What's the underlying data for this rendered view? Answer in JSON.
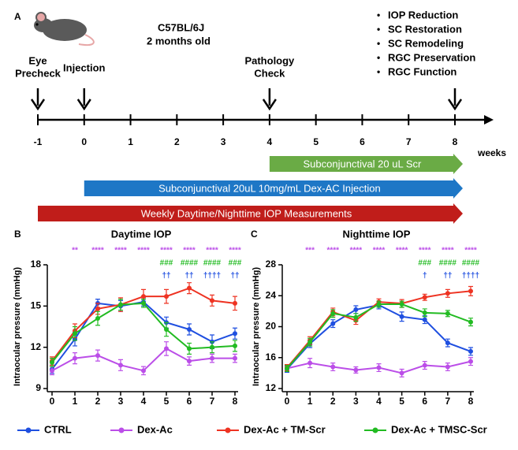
{
  "timeline": {
    "panel_label": "A",
    "strain": "C57BL/6J",
    "age": "2 months old",
    "ticks": [
      -1,
      0,
      1,
      2,
      3,
      4,
      5,
      6,
      7,
      8
    ],
    "unit": "weeks",
    "events": [
      {
        "at": -1,
        "lines": [
          "Eye",
          "Precheck"
        ]
      },
      {
        "at": 0,
        "lines": [
          "Injection"
        ]
      },
      {
        "at": 4,
        "lines": [
          "Pathology",
          "Check"
        ]
      },
      {
        "at": 8,
        "lines": []
      }
    ],
    "outcomes": [
      "IOP Reduction",
      "SC Restoration",
      "SC Remodeling",
      "RGC Preservation",
      "RGC Function"
    ],
    "bars": [
      {
        "label": "Subconjunctival 20 uL Scr",
        "start": 4,
        "end": 8,
        "color": "#6aab45"
      },
      {
        "label": "Subconjunctival 20uL 10mg/mL  Dex-AC Injection",
        "start": 0,
        "end": 8,
        "color": "#1e77c6"
      },
      {
        "label": "Weekly Daytime/Nighttime IOP Measurements",
        "start": -1,
        "end": 8,
        "color": "#c01d1a"
      }
    ]
  },
  "chart_data": [
    {
      "type": "line",
      "panel_label": "B",
      "title": "Daytime IOP",
      "y_label": "Intraocular pressure (mmHg)",
      "x": [
        0,
        1,
        2,
        3,
        4,
        5,
        6,
        7,
        8
      ],
      "xlim": [
        0,
        8
      ],
      "xticks": [
        0,
        1,
        2,
        3,
        4,
        5,
        6,
        7,
        8
      ],
      "ylim": [
        9,
        18
      ],
      "yticks": [
        9,
        12,
        15,
        18
      ],
      "series": [
        {
          "name": "CTRL",
          "color": "#1f4fe0",
          "values": [
            10.4,
            12.6,
            15.2,
            15.0,
            15.3,
            13.8,
            13.3,
            12.4,
            13.0
          ],
          "errors": [
            0.3,
            0.5,
            0.3,
            0.4,
            0.3,
            0.4,
            0.4,
            0.5,
            0.4
          ]
        },
        {
          "name": "Dex-Ac",
          "color": "#bb4ee8",
          "values": [
            10.3,
            11.2,
            11.4,
            10.7,
            10.3,
            11.9,
            11.0,
            11.2,
            11.2
          ],
          "errors": [
            0.3,
            0.4,
            0.4,
            0.4,
            0.3,
            0.5,
            0.3,
            0.3,
            0.3
          ]
        },
        {
          "name": "Dex-Ac + TM-Scr",
          "color": "#ee3322",
          "values": [
            11.0,
            13.2,
            14.8,
            15.1,
            15.7,
            15.7,
            16.3,
            15.4,
            15.2
          ],
          "errors": [
            0.3,
            0.5,
            0.4,
            0.5,
            0.5,
            0.5,
            0.4,
            0.4,
            0.5
          ]
        },
        {
          "name": "Dex-Ac + TMSC-Scr",
          "color": "#22bb22",
          "values": [
            10.9,
            13.0,
            14.1,
            15.1,
            15.2,
            13.3,
            11.9,
            12.0,
            12.1
          ],
          "errors": [
            0.3,
            0.5,
            0.5,
            0.4,
            0.3,
            0.5,
            0.4,
            0.4,
            0.4
          ]
        }
      ],
      "significance": [
        {
          "color": "#bb4ee8",
          "marks": [
            {
              "x": 1,
              "text": "**"
            },
            {
              "x": 2,
              "text": "****"
            },
            {
              "x": 3,
              "text": "****"
            },
            {
              "x": 4,
              "text": "****"
            },
            {
              "x": 5,
              "text": "****"
            },
            {
              "x": 6,
              "text": "****"
            },
            {
              "x": 7,
              "text": "****"
            },
            {
              "x": 8,
              "text": "****"
            }
          ]
        },
        {
          "color": "#22bb22",
          "marks": [
            {
              "x": 5,
              "text": "###"
            },
            {
              "x": 6,
              "text": "####"
            },
            {
              "x": 7,
              "text": "####"
            },
            {
              "x": 8,
              "text": "###"
            }
          ]
        },
        {
          "color": "#1f4fe0",
          "marks": [
            {
              "x": 5,
              "text": "††"
            },
            {
              "x": 6,
              "text": "††"
            },
            {
              "x": 7,
              "text": "††††"
            },
            {
              "x": 8,
              "text": "††"
            }
          ]
        }
      ]
    },
    {
      "type": "line",
      "panel_label": "C",
      "title": "Nighttime IOP",
      "y_label": "Intraocular pressure (mmHg)",
      "x": [
        0,
        1,
        2,
        3,
        4,
        5,
        6,
        7,
        8
      ],
      "xlim": [
        0,
        8
      ],
      "xticks": [
        0,
        1,
        2,
        3,
        4,
        5,
        6,
        7,
        8
      ],
      "ylim": [
        12,
        28
      ],
      "yticks": [
        12,
        16,
        20,
        24,
        28
      ],
      "series": [
        {
          "name": "CTRL",
          "color": "#1f4fe0",
          "values": [
            14.5,
            17.8,
            20.4,
            22.2,
            22.8,
            21.3,
            20.9,
            17.9,
            16.8
          ],
          "errors": [
            0.4,
            0.5,
            0.5,
            0.5,
            0.5,
            0.6,
            0.5,
            0.5,
            0.5
          ]
        },
        {
          "name": "Dex-Ac",
          "color": "#bb4ee8",
          "values": [
            14.6,
            15.3,
            14.8,
            14.4,
            14.7,
            14.0,
            15.0,
            14.8,
            15.5
          ],
          "errors": [
            0.4,
            0.6,
            0.5,
            0.4,
            0.5,
            0.5,
            0.5,
            0.5,
            0.5
          ]
        },
        {
          "name": "Dex-Ac + TM-Scr",
          "color": "#ee3322",
          "values": [
            14.7,
            18.2,
            21.9,
            20.8,
            23.2,
            23.0,
            23.8,
            24.3,
            24.6
          ],
          "errors": [
            0.4,
            0.5,
            0.5,
            0.5,
            0.4,
            0.5,
            0.4,
            0.5,
            0.6
          ]
        },
        {
          "name": "Dex-Ac + TMSC-Scr",
          "color": "#22bb22",
          "values": [
            14.6,
            18.0,
            21.7,
            21.2,
            22.9,
            22.9,
            21.8,
            21.7,
            20.6
          ],
          "errors": [
            0.4,
            0.5,
            0.5,
            0.5,
            0.4,
            0.4,
            0.5,
            0.4,
            0.5
          ]
        }
      ],
      "significance": [
        {
          "color": "#bb4ee8",
          "marks": [
            {
              "x": 1,
              "text": "***"
            },
            {
              "x": 2,
              "text": "****"
            },
            {
              "x": 3,
              "text": "****"
            },
            {
              "x": 4,
              "text": "****"
            },
            {
              "x": 5,
              "text": "****"
            },
            {
              "x": 6,
              "text": "****"
            },
            {
              "x": 7,
              "text": "****"
            },
            {
              "x": 8,
              "text": "****"
            }
          ]
        },
        {
          "color": "#22bb22",
          "marks": [
            {
              "x": 6,
              "text": "###"
            },
            {
              "x": 7,
              "text": "####"
            },
            {
              "x": 8,
              "text": "####"
            }
          ]
        },
        {
          "color": "#1f4fe0",
          "marks": [
            {
              "x": 6,
              "text": "†"
            },
            {
              "x": 7,
              "text": "††"
            },
            {
              "x": 8,
              "text": "††††"
            }
          ]
        }
      ]
    }
  ]
}
